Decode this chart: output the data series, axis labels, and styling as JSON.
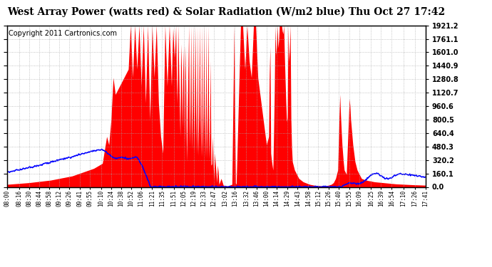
{
  "title": "West Array Power (watts red) & Solar Radiation (W/m2 blue) Thu Oct 27 17:42",
  "copyright": "Copyright 2011 Cartronics.com",
  "ylabel_right": [
    "0.0",
    "160.1",
    "320.2",
    "480.3",
    "640.4",
    "800.5",
    "960.6",
    "1120.7",
    "1280.8",
    "1440.9",
    "1601.0",
    "1761.1",
    "1921.2"
  ],
  "yticks_right": [
    0.0,
    160.1,
    320.2,
    480.3,
    640.4,
    800.5,
    960.6,
    1120.7,
    1280.8,
    1440.9,
    1601.0,
    1761.1,
    1921.2
  ],
  "ymax": 1921.2,
  "background_color": "#ffffff",
  "plot_bg": "#ffffff",
  "grid_color": "#aaaaaa",
  "red_color": "#ff0000",
  "blue_color": "#0000ff",
  "title_fontsize": 10,
  "copyright_fontsize": 7,
  "time_labels": [
    "08:00",
    "08:16",
    "08:30",
    "08:44",
    "08:58",
    "09:12",
    "09:26",
    "09:41",
    "09:55",
    "10:10",
    "10:24",
    "10:38",
    "10:52",
    "11:06",
    "11:21",
    "11:35",
    "11:51",
    "12:05",
    "12:19",
    "12:33",
    "12:47",
    "13:02",
    "13:16",
    "13:32",
    "13:46",
    "14:00",
    "14:14",
    "14:29",
    "14:43",
    "14:58",
    "15:12",
    "15:26",
    "15:40",
    "15:55",
    "16:09",
    "16:25",
    "16:39",
    "16:54",
    "17:10",
    "17:26",
    "17:41"
  ]
}
